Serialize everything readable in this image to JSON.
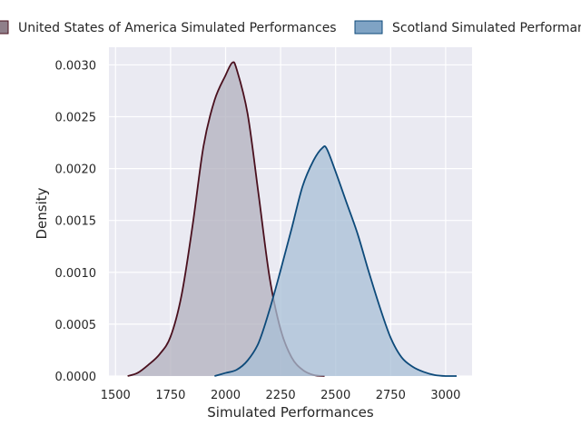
{
  "chart_data": {
    "type": "area",
    "xlabel": "Simulated Performances",
    "ylabel": "Density",
    "xlim": [
      1470,
      3120
    ],
    "ylim": [
      0,
      0.00317
    ],
    "x_ticks": [
      1500,
      1750,
      2000,
      2250,
      2500,
      2750,
      3000
    ],
    "x_tick_labels": [
      "1500",
      "1750",
      "2000",
      "2250",
      "2500",
      "2750",
      "3000"
    ],
    "y_ticks": [
      0,
      0.0005,
      0.001,
      0.0015,
      0.002,
      0.0025,
      0.003
    ],
    "y_tick_labels": [
      "0.0000",
      "0.0005",
      "0.0010",
      "0.0015",
      "0.0020",
      "0.0025",
      "0.0030"
    ],
    "grid": true,
    "legend_position": "top",
    "series": [
      {
        "name": "United States of America Simulated Performances",
        "color": "#4a101e",
        "fill": "#b2b0bd",
        "x": [
          1555,
          1600,
          1650,
          1700,
          1750,
          1800,
          1850,
          1900,
          1950,
          2000,
          2030,
          2050,
          2100,
          2150,
          2200,
          2250,
          2300,
          2350,
          2400,
          2450
        ],
        "y": [
          0.0,
          3e-05,
          0.00011,
          0.00021,
          0.00038,
          0.00078,
          0.00145,
          0.00222,
          0.00266,
          0.0029,
          0.00302,
          0.00296,
          0.00253,
          0.00175,
          0.00095,
          0.00045,
          0.00018,
          6e-05,
          1e-05,
          0.0
        ]
      },
      {
        "name": "Scotland Simulated Performances",
        "color": "#0d4a7a",
        "fill": "#a8bfd6",
        "x": [
          1950,
          2000,
          2050,
          2100,
          2150,
          2200,
          2250,
          2300,
          2350,
          2400,
          2440,
          2460,
          2500,
          2550,
          2600,
          2650,
          2700,
          2750,
          2800,
          2850,
          2900,
          2950,
          3000,
          3050
        ],
        "y": [
          0.0,
          3e-05,
          6e-05,
          0.00015,
          0.00032,
          0.00064,
          0.00102,
          0.00142,
          0.00183,
          0.00208,
          0.0022,
          0.00219,
          0.00197,
          0.00167,
          0.00137,
          0.00101,
          0.00067,
          0.00037,
          0.00018,
          9e-05,
          4e-05,
          1e-05,
          0.0,
          0.0
        ]
      }
    ]
  }
}
